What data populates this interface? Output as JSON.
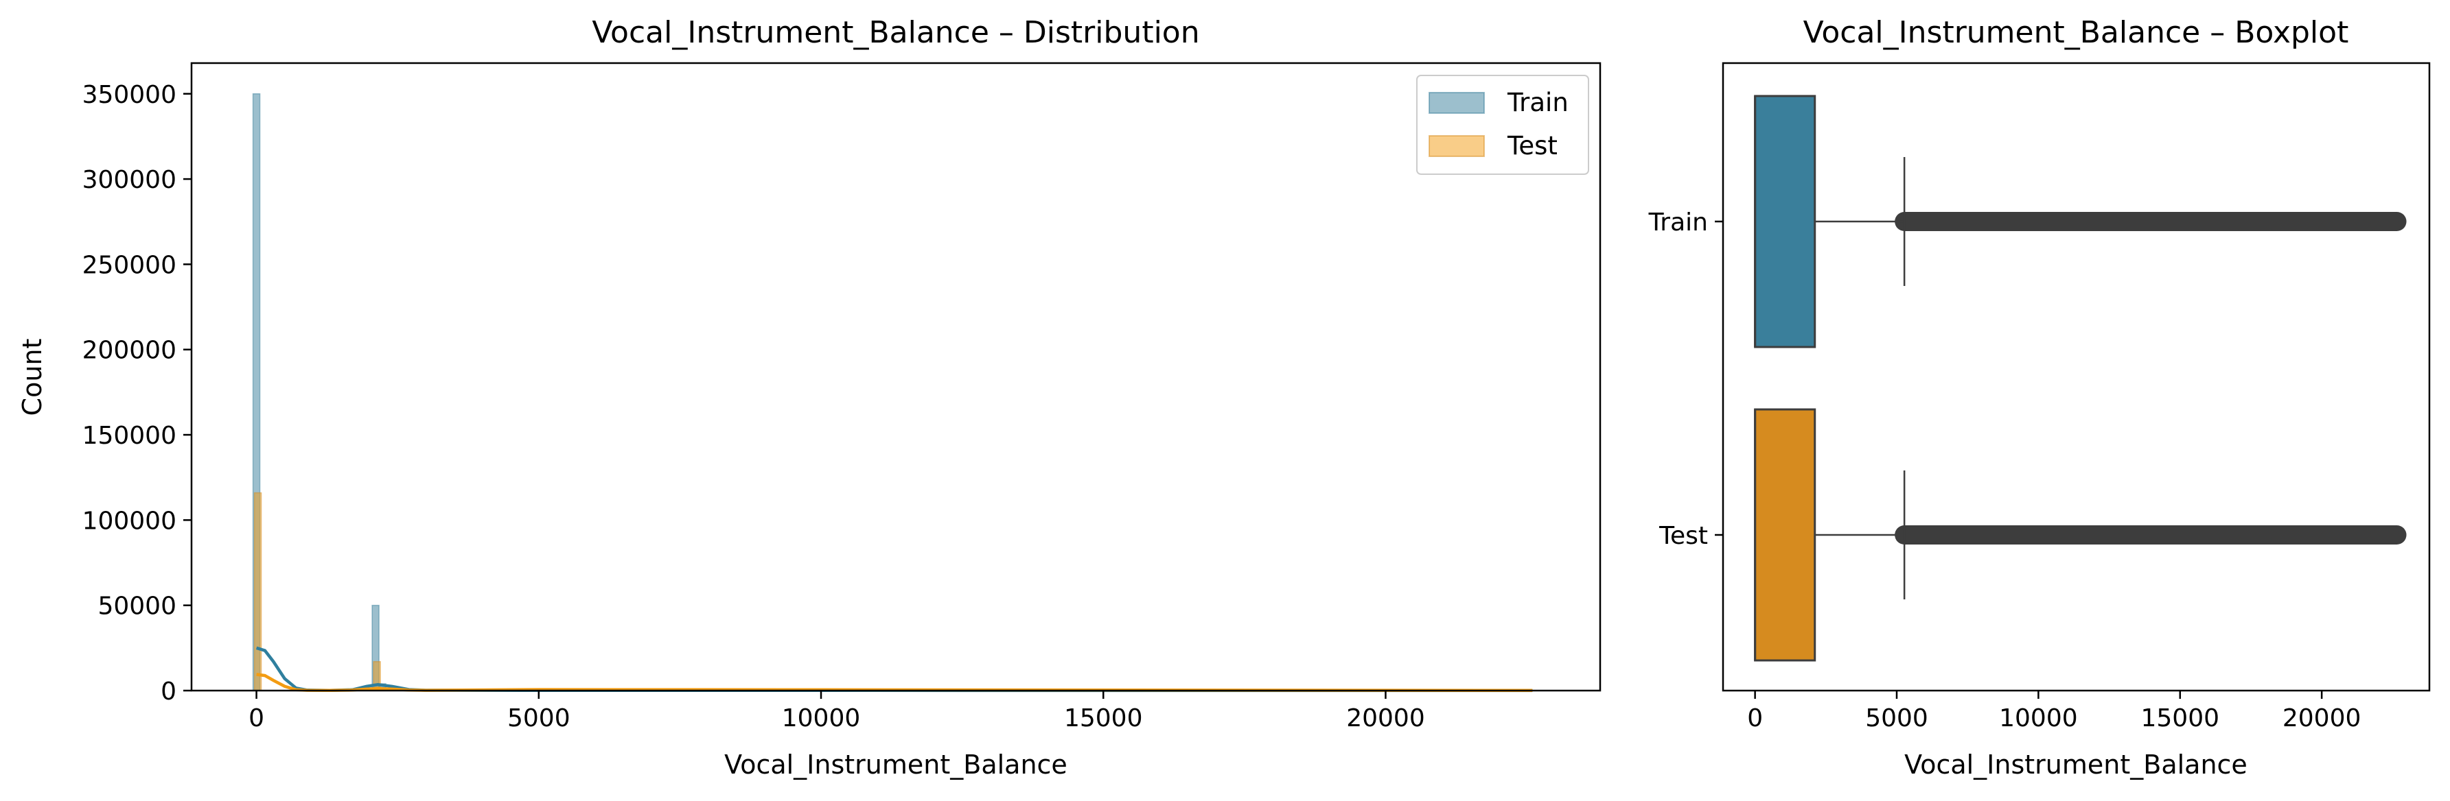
{
  "colors": {
    "train": "#3a7f9b",
    "test": "#d68b1f",
    "train_kde": "#2f7f9e",
    "test_kde": "#f39c12",
    "outlier": "#3d3d3d"
  },
  "chart_data": [
    {
      "type": "histogram",
      "title": "Vocal_Instrument_Balance – Distribution",
      "xlabel": "Vocal_Instrument_Balance",
      "ylabel": "Count",
      "xlim": [
        -1150,
        23800
      ],
      "ylim": [
        0,
        368000
      ],
      "xticks": [
        0,
        5000,
        10000,
        15000,
        20000
      ],
      "yticks": [
        0,
        50000,
        100000,
        150000,
        200000,
        250000,
        300000,
        350000
      ],
      "legend": {
        "placement": "top-right",
        "entries": [
          "Train",
          "Test"
        ]
      },
      "series": [
        {
          "name": "Train",
          "bins": [
            {
              "x": 0,
              "count": 350000
            },
            {
              "x": 2110,
              "count": 50000
            },
            {
              "x": 2230,
              "count": 4000
            }
          ],
          "kde": [
            [
              0,
              25000
            ],
            [
              150,
              23500
            ],
            [
              300,
              17000
            ],
            [
              500,
              7000
            ],
            [
              700,
              1500
            ],
            [
              900,
              300
            ],
            [
              1300,
              100
            ],
            [
              1700,
              500
            ],
            [
              1950,
              2500
            ],
            [
              2150,
              3500
            ],
            [
              2400,
              2500
            ],
            [
              2700,
              600
            ],
            [
              3000,
              200
            ],
            [
              5000,
              100
            ],
            [
              10000,
              100
            ],
            [
              22600,
              50
            ]
          ]
        },
        {
          "name": "Test",
          "bins": [
            {
              "x": 0,
              "count": 116000
            },
            {
              "x": 2110,
              "count": 17000
            },
            {
              "x": 2230,
              "count": 1500
            }
          ],
          "kde": [
            [
              0,
              9500
            ],
            [
              150,
              8800
            ],
            [
              300,
              6000
            ],
            [
              500,
              2500
            ],
            [
              700,
              500
            ],
            [
              900,
              150
            ],
            [
              1300,
              100
            ],
            [
              1700,
              300
            ],
            [
              1950,
              900
            ],
            [
              2150,
              1200
            ],
            [
              2400,
              900
            ],
            [
              2700,
              300
            ],
            [
              3000,
              150
            ],
            [
              5000,
              600
            ],
            [
              10000,
              500
            ],
            [
              22600,
              100
            ]
          ]
        }
      ]
    },
    {
      "type": "boxplot",
      "title": "Vocal_Instrument_Balance – Boxplot",
      "xlabel": "Vocal_Instrument_Balance",
      "xlim": [
        -1130,
        23800
      ],
      "xticks": [
        0,
        5000,
        10000,
        15000,
        20000
      ],
      "categories": [
        "Train",
        "Test"
      ],
      "series": [
        {
          "name": "Train",
          "q1": 0,
          "median": 0,
          "q3": 2110,
          "whisker_low": 0,
          "whisker_high": 5270,
          "outliers_from": 5270,
          "outliers_to": 22650
        },
        {
          "name": "Test",
          "q1": 0,
          "median": 0,
          "q3": 2110,
          "whisker_low": 0,
          "whisker_high": 5270,
          "outliers_from": 5270,
          "outliers_to": 22650
        }
      ]
    }
  ]
}
